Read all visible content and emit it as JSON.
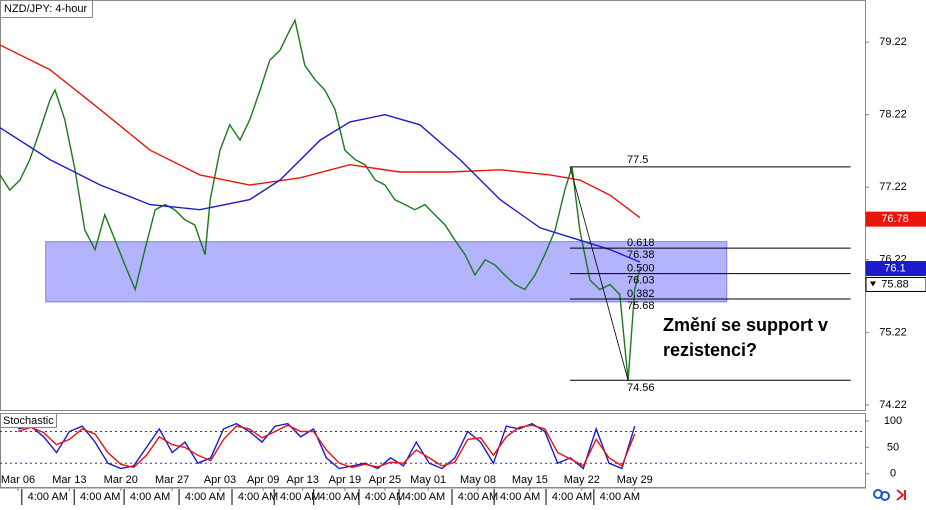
{
  "chart_data": [
    {
      "type": "line",
      "title": "NZD/JPY: 4-hour",
      "ylim": [
        74.15,
        79.8
      ],
      "xlim": [
        -0.35,
        16.48
      ],
      "yticks": [
        79.22,
        78.22,
        77.22,
        76.22,
        75.22,
        74.22
      ],
      "xticks": [
        {
          "value": 0,
          "label": "Mar 06"
        },
        {
          "value": 1,
          "label": "Mar 13"
        },
        {
          "value": 2,
          "label": "Mar 20"
        },
        {
          "value": 3,
          "label": "Mar 27"
        },
        {
          "value": 3.93,
          "label": "Apr 03"
        },
        {
          "value": 4.77,
          "label": "Apr 09"
        },
        {
          "value": 5.54,
          "label": "Apr 13"
        },
        {
          "value": 6.36,
          "label": "Apr 19"
        },
        {
          "value": 7.14,
          "label": "Apr 25"
        },
        {
          "value": 7.98,
          "label": "May 01"
        },
        {
          "value": 8.95,
          "label": "May 08"
        },
        {
          "value": 9.96,
          "label": "May 15"
        },
        {
          "value": 10.97,
          "label": "May 22"
        },
        {
          "value": 12,
          "label": "May 29"
        }
      ],
      "xticks_time": [
        {
          "value": 0.58,
          "label": "4:00 AM"
        },
        {
          "value": 1.6,
          "label": "4:00 AM"
        },
        {
          "value": 2.57,
          "label": "4:00 AM"
        },
        {
          "value": 3.64,
          "label": "4:00 AM"
        },
        {
          "value": 4.67,
          "label": "4:00 AM"
        },
        {
          "value": 5.49,
          "label": "4:00 AM"
        },
        {
          "value": 6.26,
          "label": "4:00 AM"
        },
        {
          "value": 7.14,
          "label": "4:00 AM"
        },
        {
          "value": 7.92,
          "label": "4:00 AM"
        },
        {
          "value": 8.95,
          "label": "4:00 AM"
        },
        {
          "value": 9.77,
          "label": "4:00 AM"
        },
        {
          "value": 10.78,
          "label": "4:00 AM"
        },
        {
          "value": 11.71,
          "label": "4:00 AM"
        }
      ],
      "series": [
        {
          "color": "#1b7a1b",
          "x": [
            -0.35,
            -0.16,
            0.04,
            0.23,
            0.43,
            0.62,
            0.72,
            0.91,
            1.11,
            1.3,
            1.5,
            1.69,
            1.89,
            2.08,
            2.28,
            2.47,
            2.67,
            2.86,
            3.05,
            3.25,
            3.44,
            3.64,
            3.74,
            3.93,
            4.12,
            4.32,
            4.51,
            4.71,
            4.9,
            5.1,
            5.29,
            5.39,
            5.58,
            5.78,
            5.97,
            6.17,
            6.36,
            6.56,
            6.75,
            6.95,
            7.14,
            7.33,
            7.53,
            7.72,
            7.92,
            8.11,
            8.31,
            8.5,
            8.7,
            8.89,
            9.09,
            9.28,
            9.47,
            9.67,
            9.86,
            10.06,
            10.25,
            10.45,
            10.64,
            10.78,
            10.93,
            11.13,
            11.32,
            11.52,
            11.71,
            11.87,
            12.0,
            12.1
          ],
          "values": [
            77.39,
            77.18,
            77.32,
            77.6,
            78.01,
            78.42,
            78.56,
            78.15,
            77.46,
            76.63,
            76.36,
            76.84,
            76.49,
            76.15,
            75.81,
            76.36,
            76.91,
            76.98,
            76.91,
            76.77,
            76.7,
            76.29,
            77.05,
            77.73,
            78.08,
            77.87,
            78.15,
            78.56,
            78.97,
            79.11,
            79.39,
            79.52,
            78.9,
            78.7,
            78.56,
            78.29,
            77.73,
            77.6,
            77.53,
            77.32,
            77.25,
            77.05,
            76.98,
            76.91,
            76.98,
            76.84,
            76.7,
            76.49,
            76.29,
            76.01,
            76.22,
            76.15,
            76.01,
            75.88,
            75.81,
            76.01,
            76.29,
            76.63,
            77.18,
            77.5,
            76.63,
            75.94,
            75.81,
            75.88,
            75.74,
            74.56,
            75.81,
            76.1
          ]
        },
        {
          "color": "#e8160c",
          "x": [
            -0.35,
            0.62,
            1.6,
            2.57,
            3.54,
            4.51,
            5.49,
            6.46,
            7.43,
            8.4,
            9.38,
            10.35,
            10.93,
            11.52,
            12.1
          ],
          "values": [
            79.18,
            78.84,
            78.29,
            77.73,
            77.39,
            77.25,
            77.35,
            77.53,
            77.43,
            77.43,
            77.46,
            77.39,
            77.32,
            77.11,
            76.8
          ]
        },
        {
          "color": "#1c1ccc",
          "x": [
            -0.35,
            0.62,
            1.6,
            2.57,
            3.54,
            4.51,
            5.1,
            5.88,
            6.46,
            7.14,
            7.82,
            8.6,
            9.38,
            10.16,
            10.93,
            11.52,
            12.1
          ],
          "values": [
            78.04,
            77.6,
            77.25,
            76.98,
            76.91,
            77.05,
            77.32,
            77.87,
            78.12,
            78.22,
            78.08,
            77.6,
            77.05,
            76.66,
            76.49,
            76.36,
            76.19
          ]
        }
      ],
      "zone": {
        "ylim": [
          75.64,
          76.47
        ],
        "xlim": [
          0.54,
          13.79
        ],
        "color": "#b3b3ff"
      },
      "fib": {
        "xlim": [
          10.74,
          16.2
        ],
        "high": 77.5,
        "low": 74.56,
        "levels": [
          {
            "ratio": "0.618",
            "value": 76.38
          },
          {
            "ratio": "0.500",
            "value": 76.03
          },
          {
            "ratio": "0.382",
            "value": 75.68
          }
        ]
      },
      "price_tags": [
        {
          "value": 76.78,
          "color": "#e8160c"
        },
        {
          "value": 76.1,
          "color": "#1c1ccc"
        },
        {
          "value": 75.88,
          "color": "#ffffff"
        }
      ],
      "annotation": [
        "Změní se support v",
        "rezistenci?"
      ]
    },
    {
      "type": "line",
      "title": "Stochastic",
      "ylim": [
        -25,
        115
      ],
      "xlim": [
        -0.35,
        16.48
      ],
      "yticks": [
        100,
        50,
        0
      ],
      "levels": [
        80,
        20
      ],
      "series": [
        {
          "color": "#1c1ccc",
          "x": [
            0,
            0.25,
            0.5,
            0.75,
            1,
            1.25,
            1.5,
            1.75,
            2,
            2.25,
            2.5,
            2.75,
            3,
            3.25,
            3.5,
            3.75,
            4,
            4.25,
            4.5,
            4.75,
            5,
            5.25,
            5.5,
            5.75,
            6,
            6.25,
            6.5,
            6.75,
            7,
            7.25,
            7.5,
            7.75,
            8,
            8.25,
            8.5,
            8.75,
            9,
            9.25,
            9.5,
            9.75,
            10,
            10.25,
            10.5,
            10.75,
            11,
            11.25,
            11.5,
            11.75,
            12
          ],
          "values": [
            85,
            90,
            70,
            40,
            80,
            90,
            60,
            20,
            10,
            15,
            50,
            85,
            40,
            60,
            20,
            30,
            85,
            95,
            80,
            60,
            90,
            95,
            70,
            85,
            30,
            10,
            15,
            20,
            10,
            30,
            15,
            60,
            20,
            10,
            30,
            80,
            60,
            20,
            90,
            85,
            95,
            80,
            20,
            30,
            10,
            85,
            20,
            10,
            90
          ]
        },
        {
          "color": "#e8160c",
          "x": [
            0,
            0.25,
            0.5,
            0.75,
            1,
            1.25,
            1.5,
            1.75,
            2,
            2.25,
            2.5,
            2.75,
            3,
            3.25,
            3.5,
            3.75,
            4,
            4.25,
            4.5,
            4.75,
            5,
            5.25,
            5.5,
            5.75,
            6,
            6.25,
            6.5,
            6.75,
            7,
            7.25,
            7.5,
            7.75,
            8,
            8.25,
            8.5,
            8.75,
            9,
            9.25,
            9.5,
            9.75,
            10,
            10.25,
            10.5,
            10.75,
            11,
            11.25,
            11.5,
            11.75,
            12
          ],
          "values": [
            80,
            88,
            78,
            55,
            65,
            85,
            75,
            40,
            18,
            12,
            35,
            70,
            55,
            50,
            35,
            25,
            65,
            90,
            85,
            68,
            80,
            92,
            80,
            80,
            45,
            20,
            12,
            18,
            13,
            22,
            20,
            45,
            30,
            15,
            22,
            65,
            68,
            35,
            70,
            88,
            92,
            85,
            40,
            28,
            15,
            65,
            30,
            15,
            75
          ]
        }
      ]
    }
  ]
}
